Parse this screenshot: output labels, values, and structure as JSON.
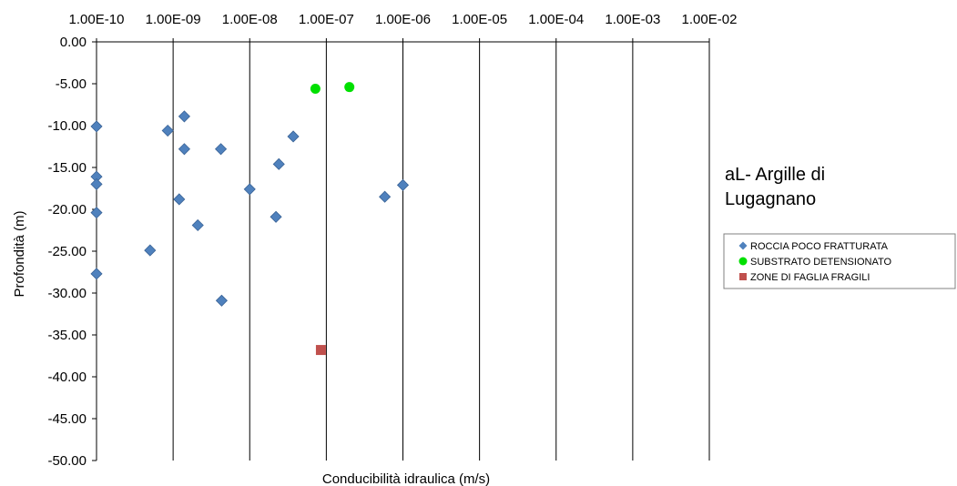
{
  "chart_data": {
    "type": "scatter",
    "title": "aL- Argille di Lugagnano",
    "xlabel": "Conducibilità idraulica (m/s)",
    "ylabel": "Profondità (m)",
    "x_scale": "log",
    "xlim": [
      1e-10,
      0.01
    ],
    "ylim": [
      -50,
      0
    ],
    "x_ticks": [
      1e-10,
      1e-09,
      1e-08,
      1e-07,
      1e-06,
      1e-05,
      0.0001,
      0.001,
      0.01
    ],
    "x_tick_labels": [
      "1.00E-10",
      "1.00E-09",
      "1.00E-08",
      "1.00E-07",
      "1.00E-06",
      "1.00E-05",
      "1.00E-04",
      "1.00E-03",
      "1.00E-02"
    ],
    "y_ticks": [
      0,
      -5,
      -10,
      -15,
      -20,
      -25,
      -30,
      -35,
      -40,
      -45,
      -50
    ],
    "y_tick_labels": [
      "0.00",
      "-5.00",
      "-10.00",
      "-15.00",
      "-20.00",
      "-25.00",
      "-30.00",
      "-35.00",
      "-40.00",
      "-45.00",
      "-50.00"
    ],
    "grid": "vertical major gridlines",
    "legend_position": "right",
    "series": [
      {
        "name": "ROCCIA POCO FRATTURATA",
        "marker": "diamond",
        "color": "#4F81BD",
        "points": [
          [
            1e-10,
            -10.1
          ],
          [
            1e-10,
            -16.1
          ],
          [
            1e-10,
            -17.0
          ],
          [
            1e-10,
            -20.4
          ],
          [
            1e-10,
            -27.7
          ],
          [
            5e-10,
            -24.9
          ],
          [
            8.5e-10,
            -10.6
          ],
          [
            1.2e-09,
            -18.8
          ],
          [
            1.4e-09,
            -8.9
          ],
          [
            1.4e-09,
            -12.8
          ],
          [
            2.1e-09,
            -21.9
          ],
          [
            4.2e-09,
            -12.8
          ],
          [
            4.3e-09,
            -30.9
          ],
          [
            1e-08,
            -17.6
          ],
          [
            2.2e-08,
            -20.9
          ],
          [
            2.4e-08,
            -14.6
          ],
          [
            3.7e-08,
            -11.3
          ],
          [
            5.8e-07,
            -18.5
          ],
          [
            1e-06,
            -17.1
          ]
        ]
      },
      {
        "name": "SUBSTRATO DETENSIONATO",
        "marker": "circle",
        "color": "#00E000",
        "points": [
          [
            7.2e-08,
            -5.6
          ],
          [
            2e-07,
            -5.4
          ]
        ]
      },
      {
        "name": "ZONE DI FAGLIA FRAGILI",
        "marker": "square",
        "color": "#C0504D",
        "points": [
          [
            8.5e-08,
            -36.8
          ]
        ]
      }
    ]
  }
}
